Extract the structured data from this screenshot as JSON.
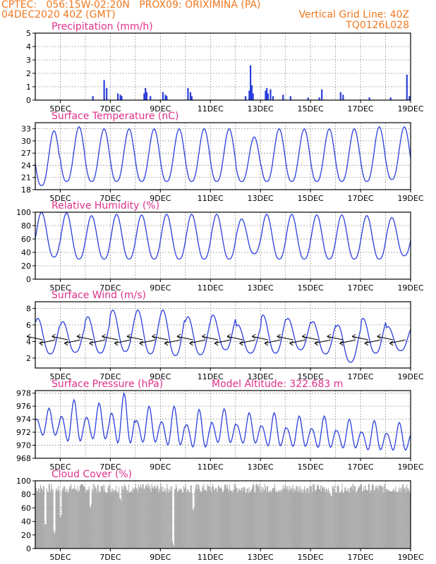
{
  "header": {
    "line1_left": "CPTEC:   056:15W-02:20N   PROX09: ORIXIMINA (PA)",
    "line2_left": "04DEC2020 40Z (GMT)",
    "line2_right": "Vertical Grid Line: 40Z",
    "line3_right": "TQ0126L028",
    "model_altitude": "Model Altitude: 322.683 m"
  },
  "colors": {
    "header": "#f07820",
    "panel_title": "#e0308a",
    "line": "#2b3fdc",
    "bar": "#2b3fdc",
    "cloud": "#aaaaaa",
    "arrow": "#000000"
  },
  "x_axis": {
    "labels": [
      "5DEC",
      "7DEC",
      "9DEC",
      "11DEC",
      "13DEC",
      "15DEC",
      "17DEC",
      "19DEC"
    ],
    "label_day": [
      5,
      7,
      9,
      11,
      13,
      15,
      17,
      19
    ],
    "start_day": 4.0,
    "end_day": 19.0
  },
  "chart_data": [
    {
      "type": "bar",
      "title": "Precipitation (mm/h)",
      "ylim": [
        0,
        5
      ],
      "yticks": [
        "0",
        "1",
        "2",
        "3",
        "4",
        "5"
      ],
      "x_day": [
        6.3,
        6.75,
        6.85,
        7.3,
        7.4,
        7.45,
        8.35,
        8.4,
        8.45,
        8.6,
        9.1,
        9.2,
        9.25,
        10.1,
        10.2,
        10.25,
        12.4,
        12.55,
        12.6,
        12.65,
        12.7,
        13.2,
        13.25,
        13.3,
        13.4,
        13.5,
        13.9,
        14.2,
        14.9,
        15.35,
        15.45,
        16.2,
        16.3,
        17.35,
        18.2,
        18.85,
        18.95
      ],
      "values": [
        0.3,
        1.5,
        0.9,
        0.5,
        0.4,
        0.3,
        0.5,
        0.9,
        0.6,
        0.3,
        0.6,
        0.4,
        0.3,
        0.9,
        0.6,
        0.3,
        0.3,
        0.7,
        2.6,
        1.1,
        0.5,
        0.7,
        0.9,
        0.5,
        0.8,
        0.3,
        0.4,
        0.3,
        0.2,
        0.2,
        0.8,
        0.6,
        0.4,
        0.2,
        0.2,
        1.9,
        0.3
      ]
    },
    {
      "type": "line",
      "title": "Surface Temperature (nC)",
      "ylim": [
        18,
        34.5
      ],
      "yticks": [
        "18",
        "21",
        "24",
        "27",
        "30",
        "33"
      ],
      "daily_min": [
        19,
        20,
        20,
        20,
        20,
        20,
        20,
        20,
        20,
        20,
        20,
        20,
        20,
        20,
        20.5
      ],
      "daily_max": [
        32.5,
        33.5,
        33,
        33,
        33,
        33,
        33,
        33,
        31,
        33,
        33,
        33,
        33,
        33.5,
        33.5
      ]
    },
    {
      "type": "line",
      "title": "Relative Humidity (%)",
      "ylim": [
        0,
        100
      ],
      "yticks": [
        "0",
        "20",
        "40",
        "60",
        "80",
        "100"
      ],
      "daily_min": [
        33,
        30,
        30,
        30,
        30,
        30,
        30,
        30,
        38,
        30,
        30,
        30,
        30,
        30,
        35
      ],
      "daily_max": [
        100,
        99,
        95,
        97,
        96,
        97,
        97,
        97,
        90,
        97,
        97,
        96,
        96,
        95,
        92
      ]
    },
    {
      "type": "line",
      "title": "Surface Wind (m/s)",
      "ylim": [
        0.8,
        8.8
      ],
      "yticks": [
        "2",
        "4",
        "6",
        "8"
      ],
      "daily_min": [
        2.5,
        2.7,
        2.6,
        2.8,
        2.5,
        2.3,
        2.4,
        3.0,
        2.6,
        2.6,
        3.0,
        2.5,
        1.5,
        2.6,
        2.9
      ],
      "daily_max": [
        6.8,
        6.4,
        7.0,
        7.8,
        7.8,
        7.8,
        7.0,
        7.2,
        6.0,
        7.2,
        6.8,
        6.4,
        6.0,
        6.8,
        5.8
      ]
    },
    {
      "type": "line",
      "title": "Surface Pressure (hPa)",
      "ylim": [
        968,
        978.4
      ],
      "yticks": [
        "968",
        "970",
        "972",
        "974",
        "976",
        "978"
      ],
      "daily_high": [
        975.7,
        977.0,
        976.5,
        978.0,
        976.0,
        976.0,
        975.5,
        975.6,
        975.0,
        975.0,
        974.5,
        974.5,
        974.0,
        973.8,
        973.5
      ],
      "daily_low": [
        970.8,
        969.5,
        970.0,
        969.0,
        969.5,
        969.0,
        968.7,
        969.5,
        969.5,
        969.0,
        969.0,
        968.8,
        968.8,
        968.5,
        968.5
      ]
    },
    {
      "type": "area",
      "title": "Cloud Cover (%)",
      "ylim": [
        0,
        100
      ],
      "yticks": [
        "0",
        "20",
        "40",
        "60",
        "80",
        "100"
      ],
      "typical_range": [
        82,
        96
      ],
      "dips_day": [
        4.4,
        4.75,
        5.0,
        6.2,
        7.4,
        9.5,
        10.3,
        15.8
      ],
      "dips_value": [
        30,
        20,
        45,
        60,
        70,
        2,
        55,
        75
      ]
    }
  ]
}
